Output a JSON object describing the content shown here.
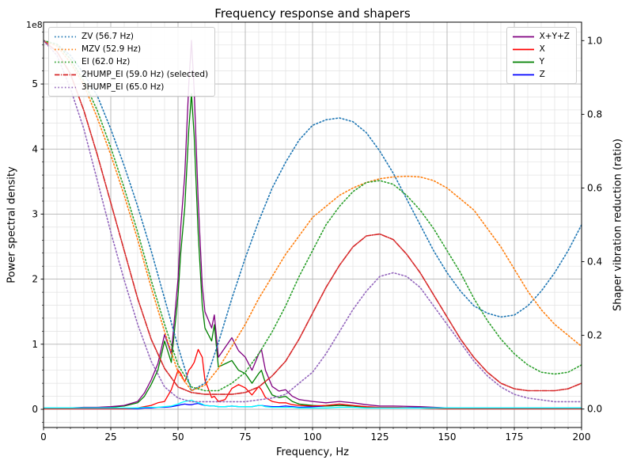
{
  "figure": {
    "title": "Frequency response and shapers",
    "background": "#ffffff"
  },
  "chart_data": {
    "type": "line",
    "title": "Frequency response and shapers",
    "xlabel": "Frequency, Hz",
    "xlim": [
      0,
      200
    ],
    "x_ticks": [
      0,
      25,
      50,
      75,
      100,
      125,
      150,
      175,
      200
    ],
    "x_tick_labels": [
      "0",
      "25",
      "50",
      "75",
      "100",
      "125",
      "150",
      "175",
      "200"
    ],
    "x_minor_step": 5,
    "grid": "both",
    "legend_positions": {
      "shapers": "upper left",
      "psd": "upper right"
    },
    "left_axis": {
      "label": "Power spectral density",
      "offset_text": "1e8",
      "unit_scale": 100000000,
      "ticks": [
        0,
        1,
        2,
        3,
        4,
        5
      ],
      "tick_labels": [
        "0",
        "1",
        "2",
        "3",
        "4",
        "5"
      ],
      "minor_step": 0.2,
      "lim": [
        -0.28,
        5.95
      ]
    },
    "right_axis": {
      "label": "Shaper vibration reduction (ratio)",
      "ticks": [
        0,
        0.2,
        0.4,
        0.6,
        0.8,
        1.0
      ],
      "tick_labels": [
        "0.0",
        "0.2",
        "0.4",
        "0.6",
        "0.8",
        "1.0"
      ],
      "lim": [
        -0.05,
        1.05
      ]
    },
    "colors": {
      "grid_major": "#b4b4b4",
      "grid_minor": "#e2e2e2",
      "axes": "#000000"
    },
    "psd_x": [
      0,
      5,
      10,
      15,
      20,
      25,
      30,
      35,
      37.5,
      40,
      42.5,
      45,
      47.5,
      50,
      51,
      52.5,
      54,
      55,
      56,
      57.5,
      59,
      60,
      62.5,
      63.5,
      65,
      67.5,
      70,
      72.5,
      75,
      77.5,
      80,
      81,
      82.5,
      85,
      87.5,
      90,
      92.5,
      95,
      100,
      105,
      110,
      115,
      120,
      125,
      130,
      140,
      150,
      160,
      170,
      180,
      190,
      200
    ],
    "psd_series": [
      {
        "id": "sum",
        "label": "X+Y+Z",
        "color": "#800080",
        "values": [
          0.02,
          0.02,
          0.02,
          0.03,
          0.03,
          0.04,
          0.06,
          0.12,
          0.25,
          0.45,
          0.7,
          1.15,
          0.85,
          2.0,
          2.8,
          3.6,
          5.0,
          5.67,
          4.9,
          3.2,
          1.9,
          1.5,
          1.25,
          1.45,
          0.8,
          0.95,
          1.1,
          0.9,
          0.8,
          0.6,
          0.85,
          0.92,
          0.6,
          0.35,
          0.28,
          0.3,
          0.2,
          0.15,
          0.12,
          0.1,
          0.12,
          0.1,
          0.07,
          0.05,
          0.05,
          0.04,
          0.02,
          0.02,
          0.02,
          0.02,
          0.02,
          0.02
        ]
      },
      {
        "id": "x",
        "label": "X",
        "color": "#ff0000",
        "values": [
          0.01,
          0.01,
          0.01,
          0.01,
          0.01,
          0.01,
          0.01,
          0.02,
          0.04,
          0.06,
          0.1,
          0.12,
          0.3,
          0.6,
          0.55,
          0.42,
          0.6,
          0.65,
          0.72,
          0.92,
          0.8,
          0.45,
          0.18,
          0.2,
          0.12,
          0.15,
          0.32,
          0.38,
          0.33,
          0.22,
          0.35,
          0.3,
          0.18,
          0.12,
          0.1,
          0.1,
          0.07,
          0.06,
          0.05,
          0.06,
          0.08,
          0.06,
          0.04,
          0.03,
          0.03,
          0.02,
          0.01,
          0.01,
          0.01,
          0.01,
          0.01,
          0.01
        ]
      },
      {
        "id": "y",
        "label": "Y",
        "color": "#008000",
        "values": [
          0.01,
          0.01,
          0.01,
          0.02,
          0.02,
          0.03,
          0.05,
          0.1,
          0.2,
          0.38,
          0.6,
          1.05,
          0.72,
          1.75,
          2.4,
          3.1,
          4.3,
          4.85,
          4.2,
          2.7,
          1.6,
          1.25,
          1.05,
          1.3,
          0.65,
          0.7,
          0.75,
          0.6,
          0.55,
          0.4,
          0.55,
          0.6,
          0.4,
          0.22,
          0.18,
          0.2,
          0.12,
          0.08,
          0.06,
          0.05,
          0.06,
          0.05,
          0.03,
          0.02,
          0.02,
          0.02,
          0.01,
          0.01,
          0.01,
          0.01,
          0.01,
          0.01
        ]
      },
      {
        "id": "z",
        "label": "Z",
        "color": "#0000ff",
        "values": [
          0.01,
          0.01,
          0.01,
          0.01,
          0.01,
          0.01,
          0.01,
          0.01,
          0.02,
          0.02,
          0.03,
          0.03,
          0.04,
          0.06,
          0.07,
          0.08,
          0.07,
          0.07,
          0.08,
          0.09,
          0.07,
          0.06,
          0.05,
          0.05,
          0.04,
          0.04,
          0.05,
          0.04,
          0.04,
          0.04,
          0.06,
          0.06,
          0.05,
          0.04,
          0.04,
          0.05,
          0.04,
          0.03,
          0.04,
          0.05,
          0.06,
          0.05,
          0.03,
          0.02,
          0.02,
          0.03,
          0.02,
          0.01,
          0.01,
          0.01,
          0.01,
          0.01
        ]
      },
      {
        "id": "after-shaper",
        "label": "",
        "color": "#00ffff",
        "values": [
          0.02,
          0.02,
          0.02,
          0.02,
          0.02,
          0.02,
          0.02,
          0.02,
          0.03,
          0.03,
          0.03,
          0.04,
          0.05,
          0.08,
          0.1,
          0.12,
          0.13,
          0.14,
          0.12,
          0.1,
          0.08,
          0.06,
          0.05,
          0.05,
          0.04,
          0.04,
          0.05,
          0.04,
          0.04,
          0.04,
          0.06,
          0.06,
          0.04,
          0.03,
          0.03,
          0.03,
          0.03,
          0.02,
          0.02,
          0.02,
          0.03,
          0.03,
          0.02,
          0.02,
          0.02,
          0.02,
          0.02,
          0.02,
          0.02,
          0.02,
          0.02,
          0.02
        ]
      }
    ],
    "shaper_x": [
      0,
      5,
      10,
      15,
      20,
      25,
      30,
      35,
      40,
      45,
      50,
      55,
      60,
      65,
      70,
      75,
      80,
      85,
      90,
      95,
      100,
      105,
      110,
      115,
      120,
      125,
      130,
      135,
      140,
      145,
      150,
      155,
      160,
      165,
      170,
      175,
      180,
      185,
      190,
      195,
      200
    ],
    "shaper_series": [
      {
        "id": "zv",
        "label": "ZV (56.7 Hz)",
        "color": "#1f77b4",
        "style": "dotted",
        "values": [
          1.0,
          0.99,
          0.96,
          0.91,
          0.85,
          0.76,
          0.66,
          0.55,
          0.43,
          0.3,
          0.17,
          0.05,
          0.07,
          0.18,
          0.3,
          0.41,
          0.51,
          0.6,
          0.67,
          0.73,
          0.77,
          0.785,
          0.79,
          0.78,
          0.75,
          0.7,
          0.64,
          0.57,
          0.5,
          0.43,
          0.37,
          0.32,
          0.28,
          0.26,
          0.25,
          0.255,
          0.28,
          0.32,
          0.37,
          0.43,
          0.5
        ]
      },
      {
        "id": "mzv",
        "label": "MZV (52.9 Hz)",
        "color": "#ff7f0e",
        "style": "dotted",
        "values": [
          1.0,
          0.985,
          0.94,
          0.88,
          0.79,
          0.69,
          0.58,
          0.46,
          0.33,
          0.21,
          0.1,
          0.05,
          0.065,
          0.11,
          0.17,
          0.23,
          0.3,
          0.36,
          0.42,
          0.47,
          0.52,
          0.55,
          0.58,
          0.6,
          0.615,
          0.625,
          0.63,
          0.632,
          0.63,
          0.62,
          0.6,
          0.57,
          0.54,
          0.49,
          0.44,
          0.38,
          0.32,
          0.27,
          0.23,
          0.2,
          0.17
        ]
      },
      {
        "id": "ei",
        "label": "EI (62.0 Hz)",
        "color": "#2ca02c",
        "style": "dotted",
        "values": [
          1.0,
          0.99,
          0.95,
          0.89,
          0.81,
          0.71,
          0.6,
          0.48,
          0.35,
          0.23,
          0.12,
          0.06,
          0.05,
          0.05,
          0.07,
          0.1,
          0.15,
          0.21,
          0.28,
          0.36,
          0.43,
          0.5,
          0.55,
          0.59,
          0.615,
          0.62,
          0.61,
          0.58,
          0.54,
          0.49,
          0.43,
          0.37,
          0.3,
          0.24,
          0.19,
          0.15,
          0.12,
          0.1,
          0.095,
          0.1,
          0.12
        ]
      },
      {
        "id": "2hump-ei",
        "label": "2HUMP_EI (59.0 Hz) (selected)",
        "color": "#d62728",
        "style": "dashdot",
        "values": [
          1.0,
          0.97,
          0.91,
          0.81,
          0.69,
          0.56,
          0.43,
          0.3,
          0.19,
          0.11,
          0.06,
          0.045,
          0.04,
          0.04,
          0.04,
          0.045,
          0.06,
          0.09,
          0.13,
          0.19,
          0.26,
          0.33,
          0.39,
          0.44,
          0.47,
          0.475,
          0.46,
          0.42,
          0.37,
          0.31,
          0.25,
          0.19,
          0.14,
          0.1,
          0.07,
          0.055,
          0.05,
          0.05,
          0.05,
          0.055,
          0.07
        ]
      },
      {
        "id": "3hump-ei",
        "label": "3HUMP_EI (65.0 Hz)",
        "color": "#9467bd",
        "style": "dotted",
        "values": [
          1.0,
          0.96,
          0.87,
          0.76,
          0.62,
          0.48,
          0.35,
          0.23,
          0.13,
          0.06,
          0.03,
          0.02,
          0.02,
          0.02,
          0.02,
          0.02,
          0.025,
          0.03,
          0.04,
          0.07,
          0.1,
          0.15,
          0.21,
          0.27,
          0.32,
          0.36,
          0.37,
          0.36,
          0.33,
          0.28,
          0.23,
          0.18,
          0.13,
          0.09,
          0.06,
          0.04,
          0.03,
          0.025,
          0.02,
          0.02,
          0.02
        ]
      }
    ]
  }
}
